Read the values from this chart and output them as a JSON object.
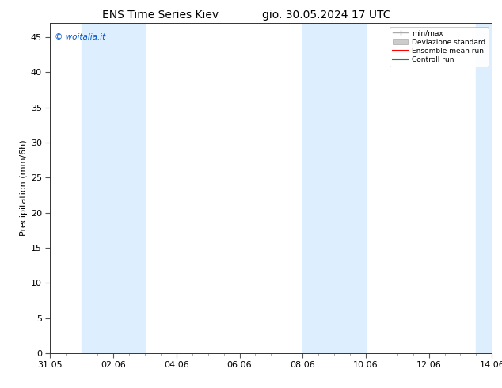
{
  "title_left": "ENS Time Series Kiev",
  "title_right": "gio. 30.05.2024 17 UTC",
  "ylabel": "Precipitation (mm/6h)",
  "xlabel": "",
  "ylim": [
    0,
    47
  ],
  "yticks": [
    0,
    5,
    10,
    15,
    20,
    25,
    30,
    35,
    40,
    45
  ],
  "xtick_major_positions": [
    0,
    2,
    4,
    6,
    8,
    10,
    12,
    14
  ],
  "xtick_labels": [
    "31.05",
    "02.06",
    "04.06",
    "06.06",
    "08.06",
    "10.06",
    "12.06",
    "14.06"
  ],
  "watermark": "© woitalia.it",
  "watermark_color": "#0055cc",
  "bg_color": "#ffffff",
  "shaded_bands": [
    [
      1.0,
      2.0
    ],
    [
      2.0,
      3.0
    ],
    [
      8.0,
      9.0
    ],
    [
      9.0,
      10.0
    ],
    [
      13.5,
      14.0
    ]
  ],
  "band_color": "#ddeeff",
  "legend_items": [
    {
      "label": "min/max",
      "color": "#aaaaaa",
      "lw": 1.5
    },
    {
      "label": "Deviazione standard",
      "color": "#cccccc",
      "lw": 6
    },
    {
      "label": "Ensemble mean run",
      "color": "#ff0000",
      "lw": 1.5
    },
    {
      "label": "Controll run",
      "color": "#228822",
      "lw": 1.5
    }
  ],
  "title_fontsize": 10,
  "axis_fontsize": 8,
  "tick_fontsize": 8,
  "xlim": [
    0,
    14
  ]
}
